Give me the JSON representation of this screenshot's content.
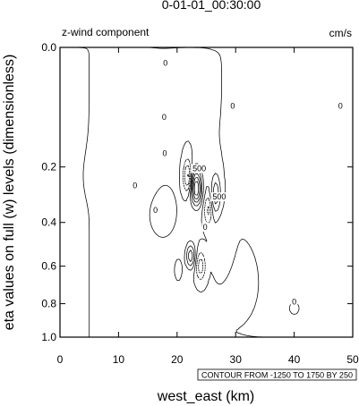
{
  "chart_data": {
    "type": "contour",
    "title": "0-01-01_00:30:00",
    "left_string": "z-wind component",
    "units": "cm/s",
    "xlabel": "west_east (km)",
    "ylabel": "eta values on full (w) levels (dimensionless)",
    "xlim": [
      0,
      50
    ],
    "ylim": [
      1.0,
      0.0
    ],
    "xticks": [
      "0",
      "10",
      "20",
      "30",
      "40",
      "50"
    ],
    "yticks": [
      "0.0",
      "0.2",
      "0.4",
      "0.6",
      "0.8",
      "1.0"
    ],
    "contour_info": "CONTOUR FROM -1250 TO 1750 BY 250",
    "contour_min": -1250,
    "contour_max": 1750,
    "contour_interval": 250,
    "contour_labels": [
      {
        "text": "0",
        "x": 18.0,
        "eta": 0.005
      },
      {
        "text": "0",
        "x": 29.5,
        "eta": 0.055
      },
      {
        "text": "0",
        "x": 17.8,
        "eta": 0.075
      },
      {
        "text": "0",
        "x": 47.9,
        "eta": 0.055
      },
      {
        "text": "0",
        "x": 17.9,
        "eta": 0.16
      },
      {
        "text": "0",
        "x": 12.8,
        "eta": 0.26
      },
      {
        "text": "0",
        "x": 16.3,
        "eta": 0.35
      },
      {
        "text": "0",
        "x": 24.8,
        "eta": 0.42
      },
      {
        "text": "0",
        "x": 40.0,
        "eta": 0.79
      },
      {
        "text": "500",
        "x": 23.8,
        "eta": 0.205
      },
      {
        "text": "500",
        "x": 27.2,
        "eta": 0.3
      }
    ]
  }
}
